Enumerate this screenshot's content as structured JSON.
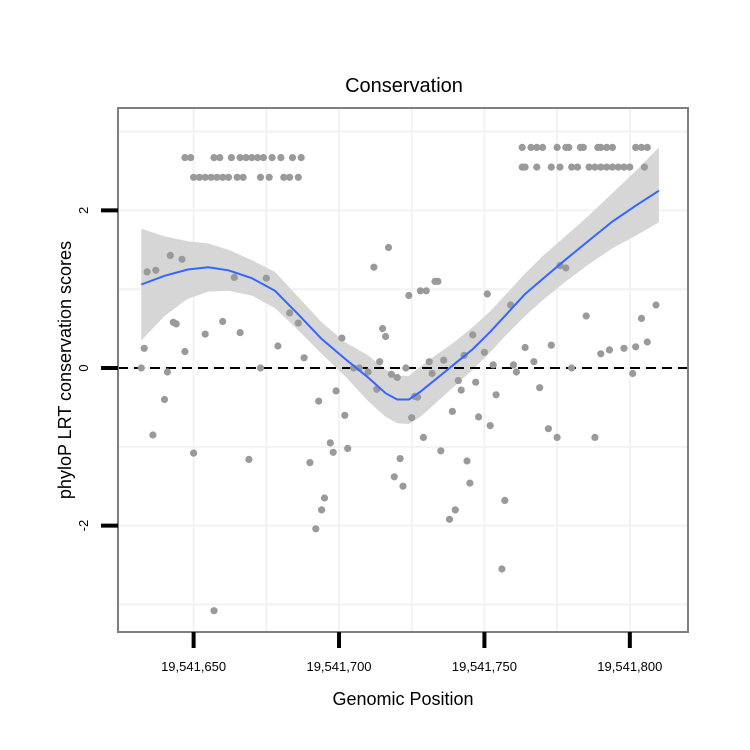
{
  "chart_data": {
    "type": "scatter",
    "title": "Conservation",
    "xlabel": "Genomic Position",
    "ylabel": "phyloP LRT conservation scores",
    "xlim": [
      19541624,
      19541820
    ],
    "ylim": [
      -3.35,
      3.3
    ],
    "x_ticks": [
      {
        "value": 19541650,
        "label": "19,541,650"
      },
      {
        "value": 19541700,
        "label": "19,541,700"
      },
      {
        "value": 19541750,
        "label": "19,541,750"
      },
      {
        "value": 19541800,
        "label": "19,541,800"
      }
    ],
    "y_ticks": [
      {
        "value": -2,
        "label": "-2"
      },
      {
        "value": 0,
        "label": "0"
      },
      {
        "value": 2,
        "label": "2"
      }
    ],
    "reference_line": {
      "y": 0,
      "style": "dashed"
    },
    "colors": {
      "points": "#9a9a9a",
      "smooth_line": "#3366ff",
      "confidence_band": "#d6d6d6",
      "panel_border": "#7f7f7f",
      "grid": "#f2f2f2"
    },
    "points": [
      [
        19541632,
        0.0
      ],
      [
        19541633,
        0.25
      ],
      [
        19541634,
        1.22
      ],
      [
        19541636,
        -0.85
      ],
      [
        19541637,
        1.24
      ],
      [
        19541640,
        -0.4
      ],
      [
        19541641,
        -0.05
      ],
      [
        19541642,
        1.43
      ],
      [
        19541643,
        0.58
      ],
      [
        19541644,
        0.56
      ],
      [
        19541646,
        1.38
      ],
      [
        19541647,
        0.21
      ],
      [
        19541650,
        -1.08
      ],
      [
        19541654,
        0.43
      ],
      [
        19541657,
        -3.08
      ],
      [
        19541660,
        0.59
      ],
      [
        19541664,
        1.15
      ],
      [
        19541666,
        0.45
      ],
      [
        19541669,
        -1.16
      ],
      [
        19541673,
        0.0
      ],
      [
        19541675,
        1.14
      ],
      [
        19541679,
        0.28
      ],
      [
        19541683,
        0.7
      ],
      [
        19541686,
        0.57
      ],
      [
        19541688,
        0.13
      ],
      [
        19541690,
        -1.2
      ],
      [
        19541692,
        -2.04
      ],
      [
        19541693,
        -0.42
      ],
      [
        19541694,
        -1.8
      ],
      [
        19541695,
        -1.65
      ],
      [
        19541697,
        -0.95
      ],
      [
        19541698,
        -1.07
      ],
      [
        19541699,
        -0.29
      ],
      [
        19541701,
        0.38
      ],
      [
        19541702,
        -0.6
      ],
      [
        19541703,
        -1.02
      ],
      [
        19541705,
        0.0
      ],
      [
        19541707,
        0.0
      ],
      [
        19541710,
        -0.05
      ],
      [
        19541712,
        1.28
      ],
      [
        19541713,
        -0.27
      ],
      [
        19541714,
        0.08
      ],
      [
        19541715,
        0.5
      ],
      [
        19541716,
        0.4
      ],
      [
        19541717,
        1.53
      ],
      [
        19541718,
        -0.08
      ],
      [
        19541719,
        -1.38
      ],
      [
        19541720,
        -0.12
      ],
      [
        19541721,
        -1.15
      ],
      [
        19541722,
        -1.5
      ],
      [
        19541723,
        0.0
      ],
      [
        19541724,
        0.92
      ],
      [
        19541725,
        -0.63
      ],
      [
        19541726,
        -0.36
      ],
      [
        19541727,
        -0.37
      ],
      [
        19541728,
        0.98
      ],
      [
        19541729,
        -0.88
      ],
      [
        19541730,
        0.98
      ],
      [
        19541731,
        0.08
      ],
      [
        19541732,
        -0.07
      ],
      [
        19541733,
        1.1
      ],
      [
        19541734,
        1.1
      ],
      [
        19541735,
        -1.05
      ],
      [
        19541736,
        0.1
      ],
      [
        19541738,
        -1.92
      ],
      [
        19541739,
        -0.55
      ],
      [
        19541740,
        -1.8
      ],
      [
        19541741,
        -0.16
      ],
      [
        19541742,
        -0.28
      ],
      [
        19541743,
        0.16
      ],
      [
        19541744,
        -1.18
      ],
      [
        19541745,
        -1.46
      ],
      [
        19541746,
        0.42
      ],
      [
        19541747,
        -0.18
      ],
      [
        19541748,
        -0.62
      ],
      [
        19541750,
        0.2
      ],
      [
        19541751,
        0.94
      ],
      [
        19541752,
        -0.73
      ],
      [
        19541753,
        0.04
      ],
      [
        19541754,
        -0.34
      ],
      [
        19541756,
        -2.55
      ],
      [
        19541757,
        -1.68
      ],
      [
        19541759,
        0.8
      ],
      [
        19541760,
        0.04
      ],
      [
        19541761,
        -0.05
      ],
      [
        19541764,
        0.26
      ],
      [
        19541767,
        0.08
      ],
      [
        19541769,
        -0.25
      ],
      [
        19541772,
        -0.77
      ],
      [
        19541773,
        0.29
      ],
      [
        19541775,
        -0.88
      ],
      [
        19541776,
        1.3
      ],
      [
        19541778,
        1.27
      ],
      [
        19541780,
        0.0
      ],
      [
        19541785,
        0.66
      ],
      [
        19541788,
        -0.88
      ],
      [
        19541790,
        0.18
      ],
      [
        19541793,
        0.23
      ],
      [
        19541798,
        0.25
      ],
      [
        19541801,
        -0.07
      ],
      [
        19541802,
        0.27
      ],
      [
        19541804,
        0.63
      ],
      [
        19541806,
        0.33
      ],
      [
        19541809,
        0.8
      ],
      [
        19541647,
        2.67
      ],
      [
        19541649,
        2.67
      ],
      [
        19541657,
        2.67
      ],
      [
        19541659,
        2.67
      ],
      [
        19541663,
        2.67
      ],
      [
        19541666,
        2.67
      ],
      [
        19541668,
        2.67
      ],
      [
        19541670,
        2.67
      ],
      [
        19541672,
        2.67
      ],
      [
        19541674,
        2.67
      ],
      [
        19541677,
        2.67
      ],
      [
        19541680,
        2.67
      ],
      [
        19541684,
        2.67
      ],
      [
        19541687,
        2.67
      ],
      [
        19541650,
        2.42
      ],
      [
        19541652,
        2.42
      ],
      [
        19541654,
        2.42
      ],
      [
        19541656,
        2.42
      ],
      [
        19541658,
        2.42
      ],
      [
        19541660,
        2.42
      ],
      [
        19541662,
        2.42
      ],
      [
        19541665,
        2.42
      ],
      [
        19541667,
        2.42
      ],
      [
        19541673,
        2.42
      ],
      [
        19541676,
        2.42
      ],
      [
        19541681,
        2.42
      ],
      [
        19541683,
        2.42
      ],
      [
        19541686,
        2.42
      ],
      [
        19541763,
        2.8
      ],
      [
        19541766,
        2.8
      ],
      [
        19541768,
        2.8
      ],
      [
        19541770,
        2.8
      ],
      [
        19541775,
        2.8
      ],
      [
        19541778,
        2.8
      ],
      [
        19541779,
        2.8
      ],
      [
        19541783,
        2.8
      ],
      [
        19541784,
        2.8
      ],
      [
        19541789,
        2.8
      ],
      [
        19541790,
        2.8
      ],
      [
        19541792,
        2.8
      ],
      [
        19541794,
        2.8
      ],
      [
        19541802,
        2.8
      ],
      [
        19541804,
        2.8
      ],
      [
        19541806,
        2.8
      ],
      [
        19541763,
        2.55
      ],
      [
        19541764,
        2.55
      ],
      [
        19541768,
        2.55
      ],
      [
        19541773,
        2.55
      ],
      [
        19541776,
        2.55
      ],
      [
        19541780,
        2.55
      ],
      [
        19541782,
        2.55
      ],
      [
        19541786,
        2.55
      ],
      [
        19541788,
        2.55
      ],
      [
        19541790,
        2.55
      ],
      [
        19541792,
        2.55
      ],
      [
        19541794,
        2.55
      ],
      [
        19541796,
        2.55
      ],
      [
        19541798,
        2.55
      ],
      [
        19541800,
        2.55
      ],
      [
        19541805,
        2.55
      ]
    ],
    "smooth": {
      "x": [
        19541632,
        19541640,
        19541648,
        19541655,
        19541662,
        19541670,
        19541678,
        19541686,
        19541694,
        19541702,
        19541710,
        19541716,
        19541720,
        19541724,
        19541728,
        19541734,
        19541740,
        19541746,
        19541752,
        19541758,
        19541764,
        19541770,
        19541778,
        19541786,
        19541794,
        19541802,
        19541810
      ],
      "y": [
        1.06,
        1.17,
        1.25,
        1.28,
        1.24,
        1.14,
        0.98,
        0.68,
        0.37,
        0.12,
        -0.12,
        -0.32,
        -0.4,
        -0.4,
        -0.3,
        -0.12,
        0.06,
        0.24,
        0.46,
        0.7,
        0.94,
        1.13,
        1.38,
        1.62,
        1.86,
        2.06,
        2.25
      ],
      "lower": [
        0.35,
        0.66,
        0.88,
        0.97,
        0.98,
        0.92,
        0.76,
        0.48,
        0.18,
        -0.1,
        -0.42,
        -0.62,
        -0.7,
        -0.71,
        -0.62,
        -0.42,
        -0.22,
        -0.02,
        0.2,
        0.44,
        0.66,
        0.86,
        1.1,
        1.32,
        1.52,
        1.68,
        1.85
      ],
      "upper": [
        1.77,
        1.67,
        1.61,
        1.58,
        1.5,
        1.37,
        1.22,
        0.9,
        0.58,
        0.33,
        0.16,
        -0.02,
        -0.1,
        -0.1,
        0.02,
        0.18,
        0.34,
        0.52,
        0.72,
        0.96,
        1.2,
        1.42,
        1.68,
        1.94,
        2.22,
        2.5,
        2.8
      ]
    }
  }
}
